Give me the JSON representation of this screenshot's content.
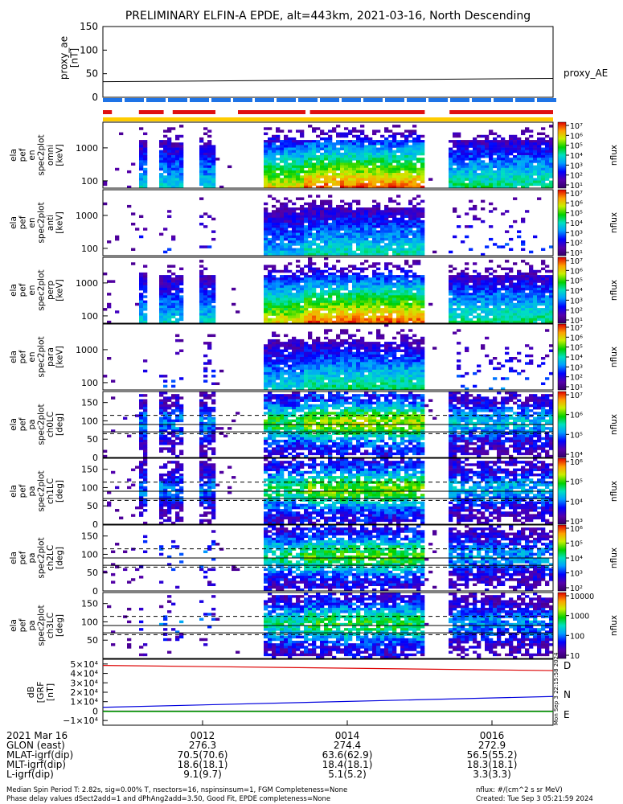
{
  "title": "PRELIMINARY ELFIN-A EPDE, alt=443km, 2021-03-16, North Descending",
  "proxy_panel": {
    "ylabel_lines": [
      "proxy_ae",
      "[nT]"
    ],
    "yticks": [
      "150",
      "100",
      "50",
      "0"
    ],
    "legend": "proxy_AE"
  },
  "energy_panels": [
    {
      "label_lines": [
        "ela",
        "pef",
        "en",
        "spec2plot",
        "omni",
        "[keV]"
      ],
      "yticks": [
        "1000",
        "100"
      ]
    },
    {
      "label_lines": [
        "ela",
        "pef",
        "en",
        "spec2plot",
        "anti",
        "[keV]"
      ],
      "yticks": [
        "1000",
        "100"
      ]
    },
    {
      "label_lines": [
        "ela",
        "pef",
        "en",
        "spec2plot",
        "perp",
        "[keV]"
      ],
      "yticks": [
        "1000",
        "100"
      ]
    },
    {
      "label_lines": [
        "ela",
        "pef",
        "en",
        "spec2plot",
        "para",
        "[keV]"
      ],
      "yticks": [
        "1000",
        "100"
      ]
    }
  ],
  "pitch_panels": [
    {
      "label_lines": [
        "ela",
        "pef",
        "pa",
        "spec2plot",
        "ch0LC",
        "[deg]"
      ],
      "yticks": [
        "150",
        "100",
        "50",
        "0"
      ]
    },
    {
      "label_lines": [
        "ela",
        "pef",
        "pa",
        "spec2plot",
        "ch1LC",
        "[deg]"
      ],
      "yticks": [
        "150",
        "100",
        "50",
        "0"
      ]
    },
    {
      "label_lines": [
        "ela",
        "pef",
        "pa",
        "spec2plot",
        "ch2LC",
        "[deg]"
      ],
      "yticks": [
        "150",
        "100",
        "50",
        "0"
      ]
    },
    {
      "label_lines": [
        "ela",
        "pef",
        "pa",
        "spec2plot",
        "ch3LC",
        "[deg]"
      ],
      "yticks": [
        "150",
        "100",
        "50"
      ]
    }
  ],
  "colorbars": [
    {
      "label": "nflux",
      "ticks": [
        "10⁷",
        "10⁶",
        "10⁵",
        "10⁴",
        "10³",
        "10²",
        "10¹"
      ]
    },
    {
      "label": "nflux",
      "ticks": [
        "10⁷",
        "10⁶",
        "10⁵",
        "10⁴",
        "10³",
        "10²",
        "10¹"
      ]
    },
    {
      "label": "nflux",
      "ticks": [
        "10⁷",
        "10⁶",
        "10⁵",
        "10⁴",
        "10³",
        "10²",
        "10¹"
      ]
    },
    {
      "label": "nflux",
      "ticks": [
        "10⁷",
        "10⁶",
        "10⁵",
        "10⁴",
        "10³",
        "10²",
        "10¹"
      ]
    },
    {
      "label": "nflux",
      "ticks": [
        "10⁷",
        "10⁶",
        "10⁵",
        "10⁴"
      ]
    },
    {
      "label": "nflux",
      "ticks": [
        "10⁶",
        "10⁵",
        "10⁴",
        "10³"
      ]
    },
    {
      "label": "nflux",
      "ticks": [
        "10⁶",
        "10⁵",
        "10⁴",
        "10³",
        "10²"
      ]
    },
    {
      "label": "nflux",
      "ticks": [
        "10000",
        "1000",
        "100",
        "10"
      ]
    }
  ],
  "bfield_panel": {
    "ylabel_lines": [
      "dB",
      "[GRF",
      "[nT]"
    ],
    "yticks": [
      "5×10⁴",
      "4×10⁴",
      "3×10⁴",
      "2×10⁴",
      "1×10⁴",
      "0",
      "−1×10⁴"
    ],
    "legend": [
      "D",
      "N",
      "E"
    ],
    "side_text": "Mon Sep 3 22:15:58 2024"
  },
  "ephemeris": {
    "rows": [
      {
        "label": "2021 Mar 16",
        "values": [
          "0012",
          "0014",
          "0016"
        ]
      },
      {
        "label": "GLON (east)",
        "values": [
          "276.3",
          "274.4",
          "272.9"
        ]
      },
      {
        "label": "MLAT-igrf(dip)",
        "values": [
          "70.5(70.6)",
          "63.6(62.9)",
          "56.5(55.2)"
        ]
      },
      {
        "label": "MLT-igrf(dip)",
        "values": [
          "18.6(18.1)",
          "18.4(18.1)",
          "18.3(18.1)"
        ]
      },
      {
        "label": "L-igrf(dip)",
        "values": [
          "9.1(9.7)",
          "5.1(5.2)",
          "3.3(3.3)"
        ]
      }
    ]
  },
  "footer": {
    "line1": "Median Spin Period T: 2.82s, sig=0.00% T, nsectors=16, nspinsinsum=1, FGM Completeness=None",
    "line2": "Phase delay values dSect2add=1 and dPhAng2add=3.50, Good Fit, EPDE completeness=None",
    "units": "nflux: #/(cm^2 s sr MeV)",
    "created": "Created: Tue Sep  3 05:21:59 2024"
  },
  "chart_data": {
    "type": "heatmap",
    "title": "PRELIMINARY ELFIN-A EPDE, alt=443km, 2021-03-16, North Descending",
    "x_axis": {
      "ticks": [
        "0012",
        "0014",
        "0016"
      ]
    },
    "proxy_ae": {
      "ylim": [
        0,
        150
      ],
      "start": 33,
      "end": 40
    },
    "energy_ylim_keV": [
      60,
      6000
    ],
    "pitch_ylim_deg": [
      0,
      180
    ],
    "bfield": {
      "ylim": [
        -15000,
        55000
      ],
      "series": [
        {
          "name": "D",
          "color": "#dd0000",
          "start": 48500,
          "end": 43000
        },
        {
          "name": "N",
          "color": "#0000dd",
          "start": 4000,
          "end": 15500
        },
        {
          "name": "E",
          "color": "#00bb00",
          "start": -500,
          "end": -500
        }
      ]
    },
    "data_gaps": [
      [
        0.1,
        0.125
      ],
      [
        0.18,
        0.21
      ],
      [
        0.3,
        0.36
      ],
      [
        0.745,
        0.77
      ]
    ]
  },
  "colors": {
    "indicator_blue": "#1e73e6",
    "indicator_red": "#e01010",
    "indicator_yellow": "#ffcc00"
  }
}
